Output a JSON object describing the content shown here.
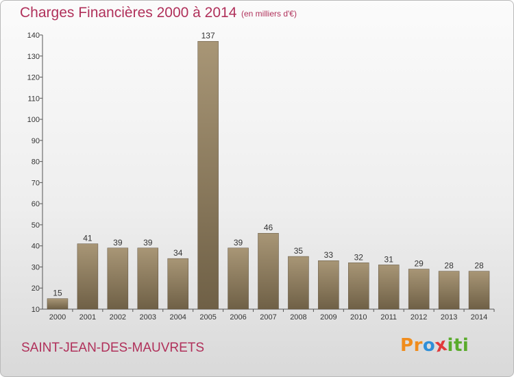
{
  "chart_data": {
    "type": "bar",
    "title": "Charges Financières 2000 à 2014",
    "subtitle": "(en milliers d'€)",
    "categories": [
      "2000",
      "2001",
      "2002",
      "2003",
      "2004",
      "2005",
      "2006",
      "2007",
      "2008",
      "2009",
      "2010",
      "2011",
      "2012",
      "2013",
      "2014"
    ],
    "values": [
      15,
      41,
      39,
      39,
      34,
      137,
      39,
      46,
      35,
      33,
      32,
      31,
      29,
      28,
      28
    ],
    "ylim": [
      10,
      140
    ],
    "yticks": [
      10,
      20,
      30,
      40,
      50,
      60,
      70,
      80,
      90,
      100,
      110,
      120,
      130,
      140
    ],
    "xlabel": "",
    "ylabel": "",
    "grid": false,
    "data_labels": true,
    "bar_color": "#8f7f63"
  },
  "footer": {
    "commune": "SAINT-JEAN-DES-MAUVRETS",
    "logo": [
      "P",
      "r",
      "o",
      "x",
      "i",
      "t",
      "i"
    ]
  },
  "colors": {
    "accent": "#b0305a",
    "logo_letters": [
      "#f08c1c",
      "#f08c1c",
      "#2f8fd8",
      "#e23a3a",
      "#5aab2c",
      "#5aab2c",
      "#5aab2c"
    ]
  }
}
